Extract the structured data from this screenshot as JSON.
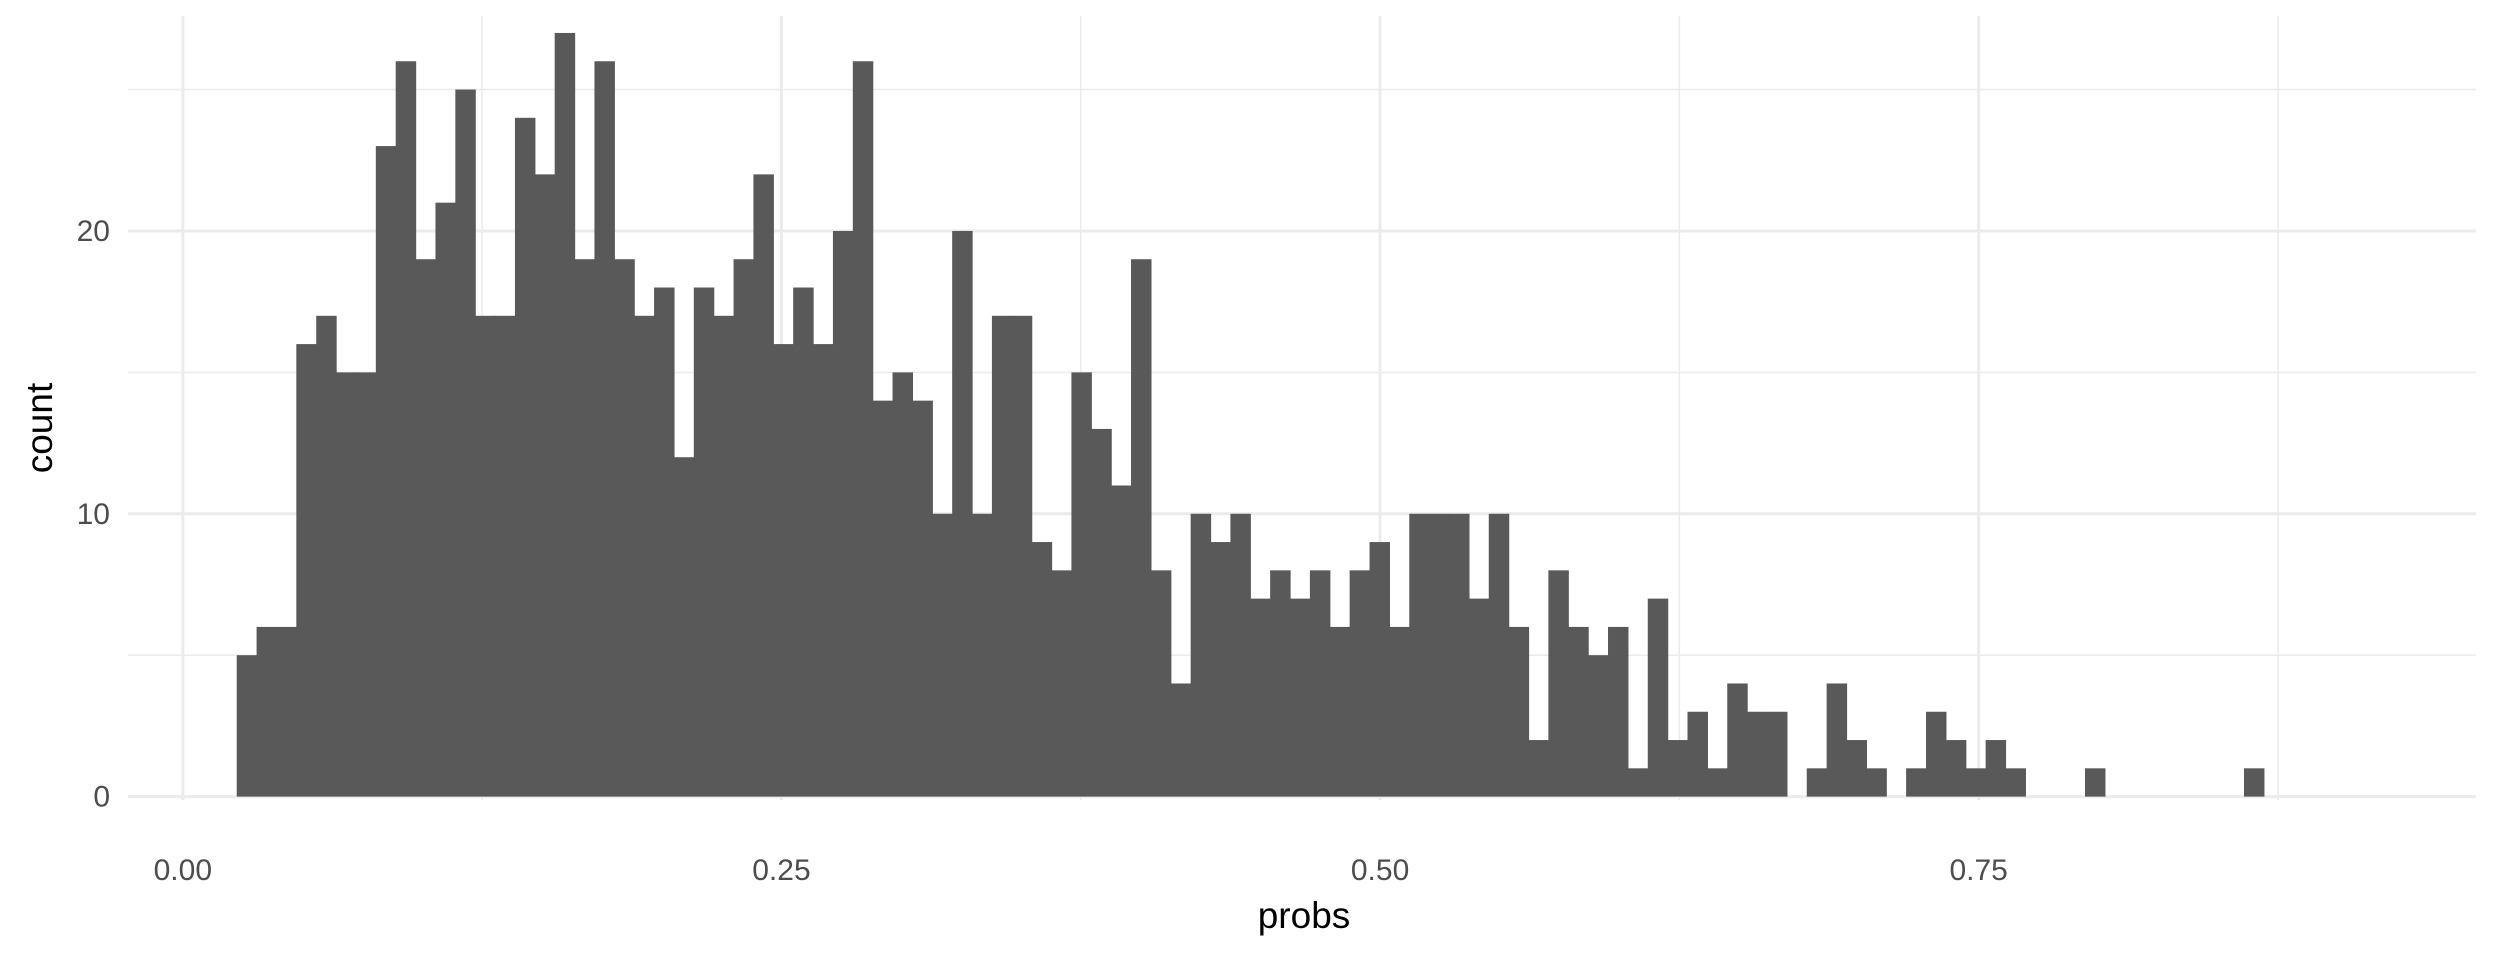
{
  "chart_data": {
    "type": "bar",
    "title": "",
    "xlabel": "probs",
    "ylabel": "count",
    "x_ticks": [
      "0.00",
      "0.25",
      "0.50",
      "0.75"
    ],
    "x_tick_values": [
      0,
      0.25,
      0.5,
      0.75
    ],
    "y_ticks": [
      "0",
      "10",
      "20"
    ],
    "y_tick_values": [
      0,
      10,
      20
    ],
    "xlim": [
      -0.0229,
      0.9577
    ],
    "ylim": [
      -0.12,
      27.6
    ],
    "bin_width": 0.0083,
    "bin_start": 0.0225,
    "values": [
      5,
      6,
      6,
      16,
      17,
      15,
      15,
      23,
      26,
      19,
      21,
      25,
      17,
      17,
      24,
      22,
      27,
      19,
      26,
      19,
      17,
      18,
      12,
      18,
      17,
      19,
      22,
      16,
      18,
      16,
      20,
      26,
      14,
      15,
      14,
      10,
      20,
      10,
      17,
      17,
      9,
      8,
      15,
      13,
      11,
      19,
      8,
      4,
      10,
      9,
      10,
      7,
      8,
      7,
      8,
      6,
      8,
      9,
      6,
      10,
      10,
      10,
      7,
      10,
      6,
      2,
      8,
      6,
      5,
      6,
      1,
      7,
      2,
      3,
      1,
      4,
      3,
      3,
      0,
      1,
      4,
      2,
      1,
      0,
      1,
      3,
      2,
      1,
      2,
      1,
      0,
      0,
      0,
      1,
      0,
      0,
      0,
      0,
      0,
      0,
      0,
      1
    ],
    "grid": true,
    "bar_color": "#595959",
    "grid_color": "#ebebeb"
  }
}
